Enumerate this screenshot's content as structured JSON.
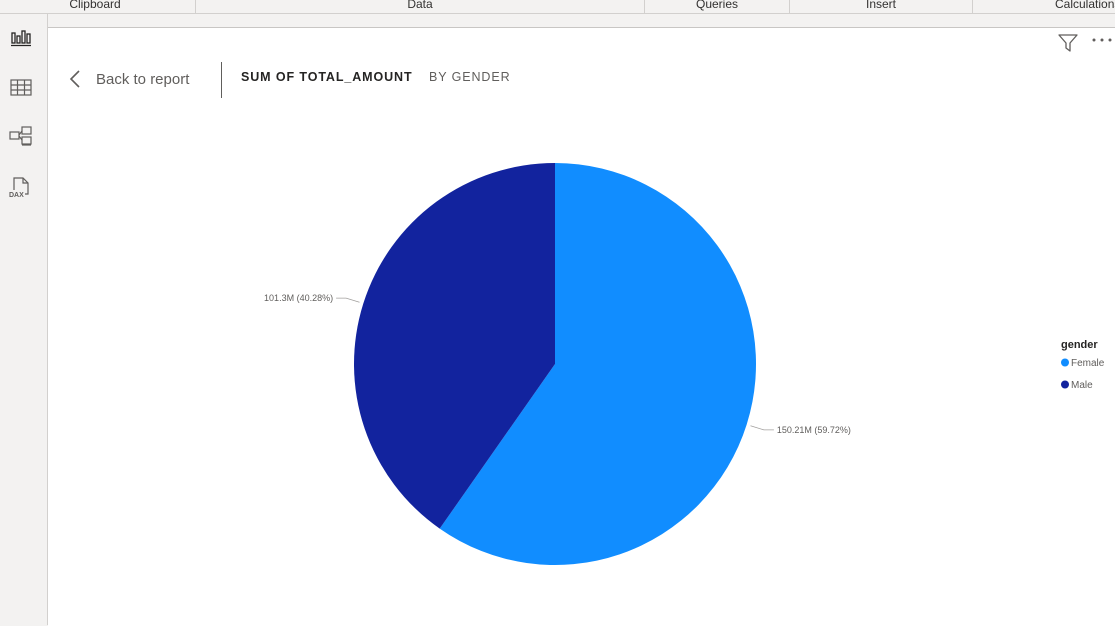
{
  "ribbon": {
    "groups": [
      "Clipboard",
      "Data",
      "Queries",
      "Insert",
      "Calculations"
    ]
  },
  "rail": {
    "icons": [
      "report-view-icon",
      "table-view-icon",
      "model-view-icon",
      "dax-query-view-icon"
    ],
    "dax_text": "DAX"
  },
  "header": {
    "back_label": "Back to report",
    "title_main": "SUM OF TOTAL_AMOUNT",
    "title_sub": "BY GENDER"
  },
  "colors": {
    "female": "#118dff",
    "male": "#12239e"
  },
  "chart_data": {
    "type": "pie",
    "title": "SUM OF TOTAL_AMOUNT BY GENDER",
    "legend_title": "gender",
    "legend_position": "right",
    "categories": [
      "Female",
      "Male"
    ],
    "values": [
      150.21,
      101.3
    ],
    "unit": "M",
    "percentages": [
      59.72,
      40.28
    ],
    "data_labels": [
      "150.21M (59.72%)",
      "101.3M (40.28%)"
    ]
  }
}
